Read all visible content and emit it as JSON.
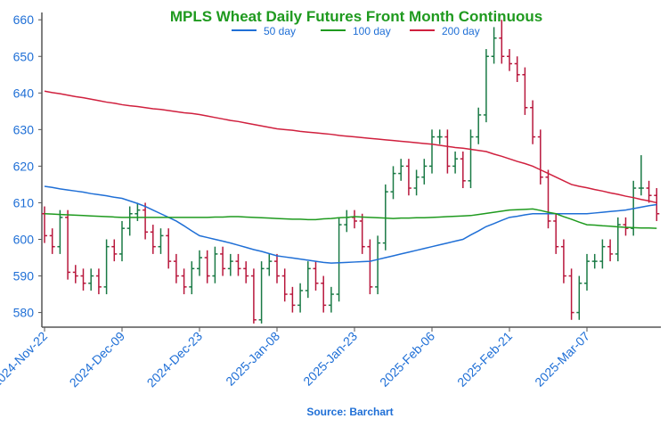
{
  "chart_data": {
    "type": "ohlc",
    "title": "MPLS Wheat Daily Futures Front Month Continuous",
    "source": "Source: Barchart",
    "categories": [
      "2024-Nov-22",
      null,
      null,
      null,
      null,
      null,
      null,
      null,
      null,
      null,
      "2024-Dec-09",
      null,
      null,
      null,
      null,
      null,
      null,
      null,
      null,
      null,
      "2024-Dec-23",
      null,
      null,
      null,
      null,
      null,
      null,
      null,
      null,
      null,
      "2025-Jan-08",
      null,
      null,
      null,
      null,
      null,
      null,
      null,
      null,
      null,
      "2025-Jan-23",
      null,
      null,
      null,
      null,
      null,
      null,
      null,
      null,
      null,
      "2025-Feb-06",
      null,
      null,
      null,
      null,
      null,
      null,
      null,
      null,
      null,
      "2025-Feb-21",
      null,
      null,
      null,
      null,
      null,
      null,
      null,
      null,
      null,
      "2025-Mar-07",
      null,
      null,
      null,
      null,
      null,
      null,
      null,
      null,
      null
    ],
    "open": [
      607,
      601,
      598,
      606,
      591,
      590,
      588,
      590,
      587,
      598,
      596,
      603,
      607,
      608,
      602,
      598,
      601,
      594,
      590,
      587,
      592,
      595,
      590,
      596,
      592,
      594,
      592,
      590,
      578,
      592,
      594,
      590,
      585,
      582,
      586,
      592,
      588,
      582,
      585,
      604,
      606,
      605,
      598,
      587,
      599,
      613,
      618,
      620,
      614,
      617,
      620,
      628,
      628,
      620,
      622,
      616,
      628,
      634,
      650,
      655,
      650,
      648,
      645,
      636,
      628,
      617,
      605,
      598,
      590,
      580,
      588,
      594,
      594,
      598,
      596,
      604,
      603,
      614,
      614,
      612
    ],
    "high": [
      609,
      603,
      608,
      608,
      593,
      592,
      592,
      592,
      600,
      600,
      605,
      609,
      610,
      610,
      604,
      603,
      603,
      596,
      592,
      594,
      597,
      597,
      598,
      598,
      596,
      596,
      594,
      592,
      594,
      596,
      596,
      592,
      587,
      588,
      594,
      594,
      590,
      587,
      606,
      608,
      608,
      607,
      600,
      601,
      615,
      620,
      622,
      622,
      619,
      622,
      630,
      630,
      630,
      624,
      624,
      630,
      636,
      652,
      658,
      660,
      652,
      650,
      647,
      638,
      630,
      619,
      607,
      600,
      592,
      590,
      596,
      596,
      600,
      600,
      606,
      606,
      616,
      623,
      616,
      614
    ],
    "low": [
      599,
      596,
      596,
      589,
      588,
      586,
      586,
      585,
      585,
      594,
      594,
      601,
      605,
      600,
      596,
      596,
      592,
      588,
      585,
      585,
      590,
      588,
      588,
      590,
      590,
      590,
      588,
      577,
      577,
      590,
      588,
      583,
      580,
      580,
      584,
      586,
      580,
      580,
      583,
      602,
      603,
      596,
      585,
      585,
      597,
      611,
      616,
      612,
      612,
      615,
      618,
      626,
      618,
      618,
      614,
      614,
      626,
      632,
      648,
      648,
      646,
      643,
      634,
      626,
      615,
      603,
      596,
      588,
      578,
      578,
      586,
      592,
      592,
      594,
      594,
      601,
      601,
      612,
      610,
      605
    ],
    "close": [
      601,
      598,
      606,
      591,
      590,
      588,
      590,
      587,
      598,
      596,
      603,
      607,
      608,
      602,
      598,
      601,
      594,
      590,
      587,
      592,
      595,
      590,
      596,
      592,
      594,
      592,
      590,
      578,
      592,
      594,
      590,
      585,
      582,
      586,
      592,
      588,
      582,
      585,
      604,
      606,
      605,
      598,
      587,
      599,
      613,
      618,
      620,
      614,
      617,
      620,
      628,
      628,
      620,
      622,
      616,
      628,
      634,
      650,
      655,
      650,
      648,
      645,
      636,
      628,
      617,
      605,
      598,
      590,
      580,
      588,
      594,
      594,
      598,
      596,
      604,
      603,
      614,
      614,
      612,
      607
    ],
    "up_color": "#1a7a45",
    "down_color": "#b8173c",
    "series": [
      {
        "name": "50 day",
        "color": "#1f6fd6",
        "values": [
          614.5,
          614.2,
          613.8,
          613.5,
          613.2,
          612.9,
          612.5,
          612.2,
          611.9,
          611.5,
          611.2,
          610.5,
          609.8,
          609.0,
          608,
          607,
          606,
          605,
          603.7,
          602.3,
          601,
          600.5,
          600,
          599.5,
          599,
          598.4,
          597.8,
          597.2,
          596.7,
          596.1,
          595.5,
          595.2,
          594.9,
          594.6,
          594.3,
          594,
          593.7,
          593.5,
          593.6,
          593.7,
          593.8,
          593.9,
          594,
          594.5,
          595,
          595.5,
          596,
          596.5,
          597,
          597.5,
          598,
          598.5,
          599,
          599.5,
          600,
          601.2,
          602.3,
          603.5,
          604.3,
          605.2,
          606,
          606.3,
          606.7,
          607,
          607,
          607,
          607,
          607,
          607,
          607,
          607,
          607.2,
          607.4,
          607.6,
          607.8,
          608,
          608.4,
          608.8,
          609.2,
          609.5
        ]
      },
      {
        "name": "100 day",
        "color": "#1e9a1e",
        "values": [
          607,
          606.9,
          606.8,
          606.7,
          606.6,
          606.5,
          606.4,
          606.3,
          606.2,
          606.1,
          606,
          606,
          606,
          606,
          606,
          606,
          606,
          606,
          606,
          606,
          606,
          606,
          606.1,
          606.1,
          606.2,
          606.2,
          606.1,
          606,
          605.9,
          605.8,
          605.7,
          605.6,
          605.5,
          605.5,
          605.4,
          605.4,
          605.6,
          605.7,
          605.9,
          606,
          606.2,
          606.1,
          606,
          605.9,
          605.8,
          605.7,
          605.8,
          605.8,
          605.9,
          605.9,
          606,
          606.1,
          606.2,
          606.3,
          606.4,
          606.5,
          606.8,
          607.1,
          607.4,
          607.7,
          608,
          608.1,
          608.2,
          608.3,
          607.9,
          607.4,
          607,
          606.2,
          605.5,
          604.7,
          604,
          603.9,
          603.7,
          603.6,
          603.4,
          603.3,
          603.2,
          603.1,
          603.1,
          603
        ]
      },
      {
        "name": "200 day",
        "color": "#d0203e",
        "values": [
          640.5,
          640.1,
          639.8,
          639.4,
          639.0,
          638.7,
          638.3,
          637.9,
          637.5,
          637.2,
          636.8,
          636.5,
          636.3,
          636.0,
          635.7,
          635.5,
          635.2,
          634.9,
          634.6,
          634.4,
          634.1,
          633.7,
          633.3,
          632.9,
          632.5,
          632.2,
          631.8,
          631.4,
          631.0,
          630.6,
          630.2,
          630.0,
          629.8,
          629.5,
          629.3,
          629.1,
          628.9,
          628.7,
          628.4,
          628.2,
          628.0,
          627.8,
          627.6,
          627.4,
          627.2,
          627.0,
          626.8,
          626.6,
          626.4,
          626.2,
          626.0,
          625.7,
          625.4,
          625.1,
          624.9,
          624.6,
          624.3,
          624.0,
          623.3,
          622.7,
          622.0,
          621.3,
          620.7,
          620.0,
          619,
          618,
          617,
          616,
          615,
          614.5,
          614.1,
          613.6,
          613.2,
          612.7,
          612.3,
          611.8,
          611.4,
          610.9,
          610.5,
          610.0
        ]
      }
    ],
    "ylim": [
      576,
      662
    ],
    "yticks": [
      580,
      590,
      600,
      610,
      620,
      630,
      640,
      650,
      660
    ]
  }
}
